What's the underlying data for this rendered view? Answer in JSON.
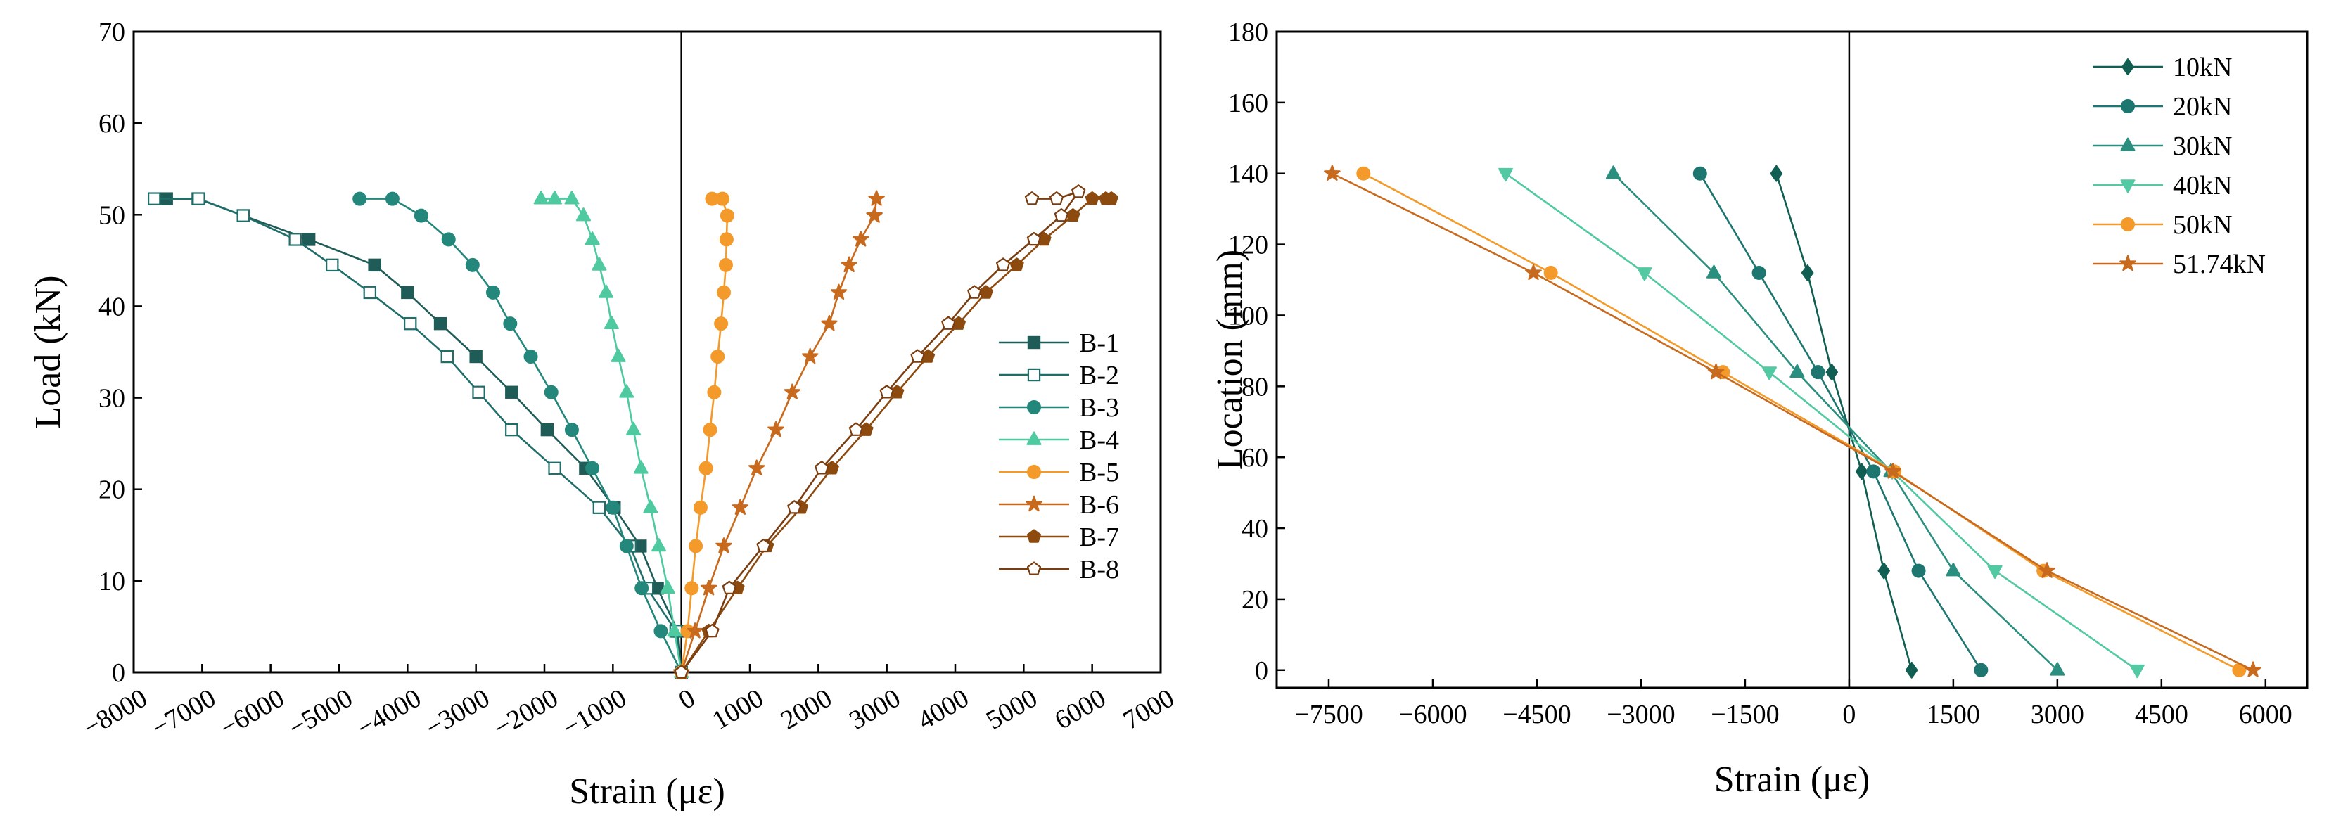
{
  "chart_data": [
    {
      "type": "line",
      "id": "left",
      "title": "",
      "xlabel": "Strain (με)",
      "ylabel": "Load (kN)",
      "xlim": [
        -8000,
        7000
      ],
      "ylim": [
        0,
        70
      ],
      "xticks": [
        -8000,
        -7000,
        -6000,
        -5000,
        -4000,
        -3000,
        -2000,
        -1000,
        0,
        1000,
        2000,
        3000,
        4000,
        5000,
        6000,
        7000
      ],
      "yticks": [
        0,
        10,
        20,
        30,
        40,
        50,
        60,
        70
      ],
      "xtick_rotation": -30,
      "zero_line": true,
      "legend_position": "right",
      "series": [
        {
          "name": "B-1",
          "marker": "square",
          "fill": "filled",
          "color": "#1f5c57",
          "x": [
            0,
            -50,
            -350,
            -600,
            -980,
            -1400,
            -1960,
            -2480,
            -3000,
            -3520,
            -4000,
            -4480,
            -5440,
            -6400,
            -7060,
            -7520
          ],
          "y": [
            0,
            4.5,
            9.2,
            13.8,
            18,
            22.3,
            26.5,
            30.6,
            34.5,
            38.1,
            41.5,
            44.5,
            47.3,
            49.9,
            51.74,
            51.74
          ]
        },
        {
          "name": "B-2",
          "marker": "square",
          "fill": "hollow",
          "color": "#1f6e6a",
          "x": [
            0,
            -80,
            -500,
            -750,
            -1200,
            -1850,
            -2480,
            -2960,
            -3420,
            -3960,
            -4550,
            -5100,
            -5640,
            -6400,
            -7050,
            -7700
          ],
          "y": [
            0,
            4.5,
            9.2,
            13.8,
            18,
            22.3,
            26.5,
            30.6,
            34.5,
            38.1,
            41.5,
            44.5,
            47.3,
            49.9,
            51.74,
            51.74
          ]
        },
        {
          "name": "B-3",
          "marker": "circle",
          "fill": "filled",
          "color": "#23877c",
          "x": [
            0,
            -300,
            -580,
            -800,
            -1000,
            -1300,
            -1600,
            -1900,
            -2200,
            -2500,
            -2750,
            -3050,
            -3400,
            -3800,
            -4220,
            -4700
          ],
          "y": [
            0,
            4.5,
            9.2,
            13.8,
            18,
            22.3,
            26.5,
            30.6,
            34.5,
            38.1,
            41.5,
            44.5,
            47.3,
            49.9,
            51.74,
            51.74
          ]
        },
        {
          "name": "B-4",
          "marker": "triangle-up",
          "fill": "filled",
          "color": "#4fcaa0",
          "x": [
            0,
            -100,
            -200,
            -330,
            -450,
            -590,
            -700,
            -800,
            -920,
            -1020,
            -1100,
            -1200,
            -1300,
            -1430,
            -1600,
            -1850,
            -2050
          ],
          "y": [
            0,
            4.5,
            9.2,
            13.8,
            18,
            22.3,
            26.5,
            30.6,
            34.5,
            38.1,
            41.5,
            44.5,
            47.3,
            49.9,
            51.74,
            51.74,
            51.74
          ]
        },
        {
          "name": "B-5",
          "marker": "circle",
          "fill": "filled",
          "color": "#f39a2a",
          "x": [
            0,
            90,
            150,
            210,
            280,
            360,
            420,
            480,
            530,
            580,
            620,
            650,
            660,
            670,
            600,
            450
          ],
          "y": [
            0,
            4.5,
            9.2,
            13.8,
            18,
            22.3,
            26.5,
            30.6,
            34.5,
            38.1,
            41.5,
            44.5,
            47.3,
            49.9,
            51.74,
            51.74
          ]
        },
        {
          "name": "B-6",
          "marker": "star",
          "fill": "filled",
          "color": "#c86a1e",
          "x": [
            0,
            200,
            400,
            620,
            860,
            1100,
            1380,
            1620,
            1880,
            2160,
            2300,
            2450,
            2620,
            2820,
            2850
          ],
          "y": [
            0,
            4.5,
            9.2,
            13.8,
            18,
            22.3,
            26.5,
            30.6,
            34.5,
            38.1,
            41.5,
            44.5,
            47.3,
            49.9,
            51.74
          ]
        },
        {
          "name": "B-7",
          "marker": "pentagon",
          "fill": "filled",
          "color": "#8c4a0f",
          "x": [
            0,
            400,
            820,
            1250,
            1750,
            2200,
            2700,
            3150,
            3600,
            4050,
            4450,
            4900,
            5300,
            5720,
            6000,
            6200,
            6280
          ],
          "y": [
            0,
            4.5,
            9.2,
            13.8,
            18,
            22.3,
            26.5,
            30.6,
            34.5,
            38.1,
            41.5,
            44.5,
            47.3,
            49.9,
            51.74,
            51.74,
            51.74
          ]
        },
        {
          "name": "B-8",
          "marker": "pentagon",
          "fill": "hollow",
          "color": "#7a3d10",
          "x": [
            0,
            450,
            700,
            1200,
            1650,
            2050,
            2550,
            3000,
            3450,
            3900,
            4280,
            4700,
            5150,
            5550,
            5800,
            5480,
            5120
          ],
          "y": [
            0,
            4.5,
            9.2,
            13.8,
            18,
            22.3,
            26.5,
            30.6,
            34.5,
            38.1,
            41.5,
            44.5,
            47.3,
            49.9,
            52.5,
            51.74,
            51.74
          ]
        }
      ]
    },
    {
      "type": "line",
      "id": "right",
      "title": "",
      "xlabel": "Strain (με)",
      "ylabel": "Location (mm)",
      "xlim": [
        -8250,
        6600
      ],
      "ylim": [
        -5,
        180
      ],
      "xticks": [
        -7500,
        -6000,
        -4500,
        -3000,
        -1500,
        0,
        1500,
        3000,
        4500,
        6000
      ],
      "yticks": [
        0,
        20,
        40,
        60,
        80,
        100,
        120,
        140,
        160,
        180
      ],
      "zero_line": true,
      "legend_position": "top-right",
      "series": [
        {
          "name": "10kN",
          "marker": "diamond",
          "color": "#115e52",
          "x": [
            -1050,
            -600,
            -250,
            180,
            500,
            900
          ],
          "y": [
            140,
            112,
            84,
            56,
            28,
            0
          ]
        },
        {
          "name": "20kN",
          "marker": "circle",
          "color": "#1d7670",
          "x": [
            -2150,
            -1300,
            -450,
            350,
            1000,
            1900
          ],
          "y": [
            140,
            112,
            84,
            56,
            28,
            0
          ]
        },
        {
          "name": "30kN",
          "marker": "triangle-up",
          "color": "#2a8f7e",
          "x": [
            -3400,
            -1950,
            -750,
            600,
            1500,
            3000
          ],
          "y": [
            140,
            112,
            84,
            56,
            28,
            0
          ]
        },
        {
          "name": "40kN",
          "marker": "triangle-down",
          "color": "#52c9a2",
          "x": [
            -4950,
            -2950,
            -1150,
            620,
            2100,
            4150
          ],
          "y": [
            140,
            112,
            84,
            56,
            28,
            0
          ]
        },
        {
          "name": "50kN",
          "marker": "circle",
          "color": "#f39a2a",
          "x": [
            -7000,
            -4300,
            -1820,
            650,
            2800,
            5620
          ],
          "y": [
            140,
            112,
            84,
            56,
            28,
            0
          ]
        },
        {
          "name": "51.74kN",
          "marker": "star",
          "color": "#c86a1e",
          "x": [
            -7450,
            -4550,
            -1920,
            630,
            2850,
            5820
          ],
          "y": [
            140,
            112,
            84,
            56,
            28,
            0
          ]
        }
      ]
    }
  ]
}
